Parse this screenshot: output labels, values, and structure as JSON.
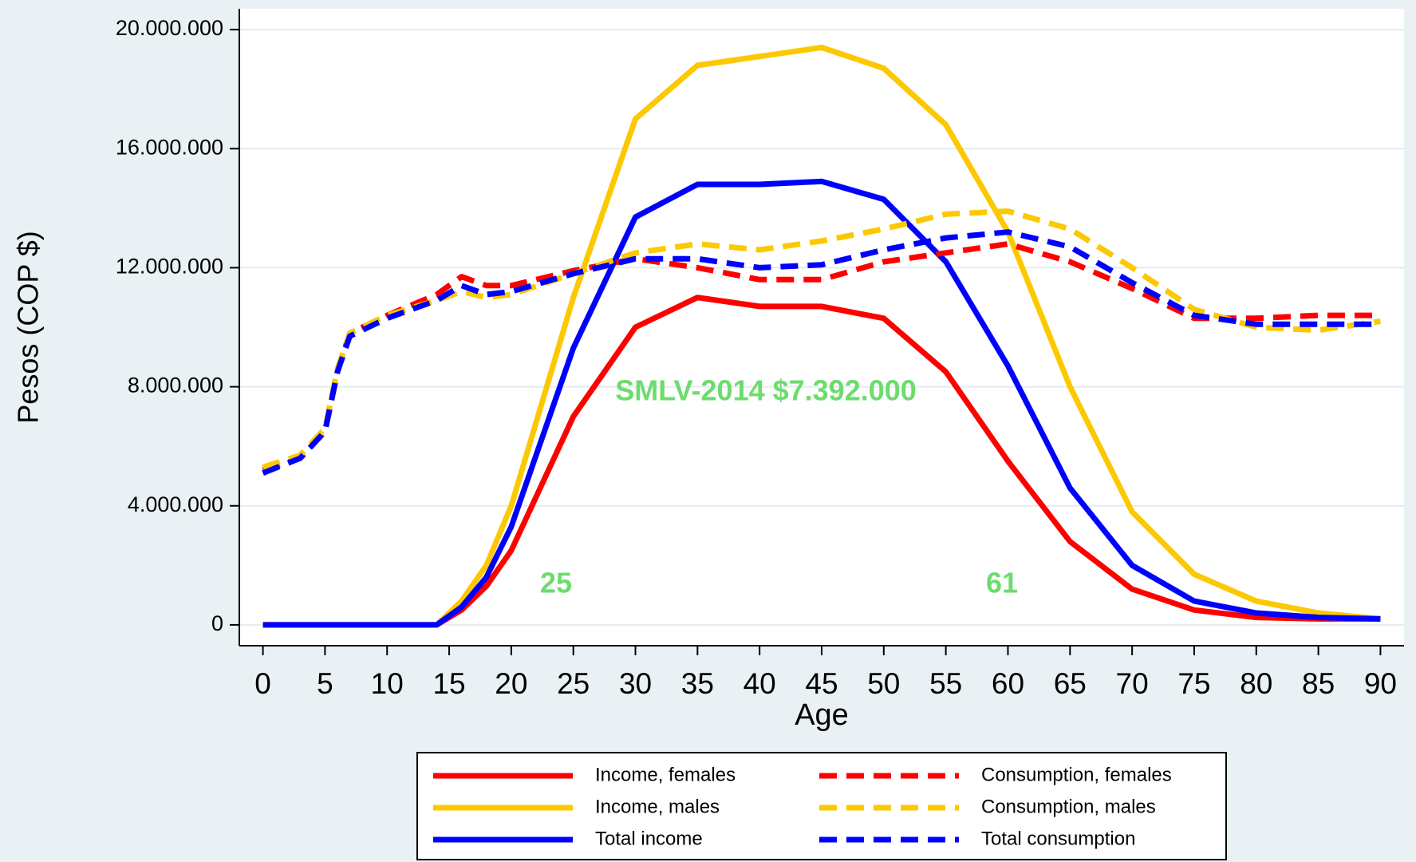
{
  "chart_data": {
    "type": "line",
    "x_label": "Age",
    "y_label": "Pesos (COP $)",
    "annotations": [
      "SMLV-2014 $7.392.000",
      "25",
      "61"
    ],
    "x": [
      0,
      3,
      5,
      6,
      7,
      10,
      14,
      16,
      18,
      20,
      25,
      30,
      35,
      40,
      45,
      50,
      55,
      60,
      65,
      70,
      75,
      80,
      85,
      90
    ],
    "series": [
      {
        "name": "Income, females",
        "color": "#ff0000",
        "style": "solid",
        "values": [
          0,
          0,
          0,
          0,
          0,
          0,
          0,
          500000,
          1300000,
          2500000,
          7000000,
          10000000,
          11000000,
          10700000,
          10700000,
          10300000,
          8500000,
          5500000,
          2800000,
          1200000,
          500000,
          250000,
          200000,
          200000
        ]
      },
      {
        "name": "Income, males",
        "color": "#fcc800",
        "style": "solid",
        "values": [
          0,
          0,
          0,
          0,
          0,
          0,
          0,
          800000,
          2000000,
          4000000,
          11000000,
          17000000,
          18800000,
          19100000,
          19400000,
          18700000,
          16800000,
          13200000,
          8000000,
          3800000,
          1700000,
          800000,
          400000,
          200000
        ]
      },
      {
        "name": "Total income",
        "color": "#0000ff",
        "style": "solid",
        "values": [
          0,
          0,
          0,
          0,
          0,
          0,
          0,
          600000,
          1600000,
          3300000,
          9300000,
          13700000,
          14800000,
          14800000,
          14900000,
          14300000,
          12200000,
          8700000,
          4600000,
          2000000,
          800000,
          400000,
          250000,
          200000
        ]
      },
      {
        "name": "Consumption, females",
        "color": "#ff0000",
        "style": "dashed",
        "values": [
          5200000,
          5600000,
          6500000,
          8500000,
          9800000,
          10400000,
          11100000,
          11700000,
          11400000,
          11400000,
          11900000,
          12300000,
          12000000,
          11600000,
          11600000,
          12200000,
          12500000,
          12800000,
          12200000,
          11300000,
          10300000,
          10300000,
          10400000,
          10400000
        ]
      },
      {
        "name": "Consumption, males",
        "color": "#fcc800",
        "style": "dashed",
        "values": [
          5300000,
          5700000,
          6600000,
          8600000,
          9800000,
          10400000,
          10900000,
          11200000,
          11000000,
          11100000,
          11800000,
          12500000,
          12800000,
          12600000,
          12900000,
          13300000,
          13800000,
          13900000,
          13300000,
          12000000,
          10600000,
          10000000,
          9900000,
          10200000
        ]
      },
      {
        "name": "Total consumption",
        "color": "#0000ff",
        "style": "dashed",
        "values": [
          5100000,
          5600000,
          6500000,
          8500000,
          9700000,
          10300000,
          10900000,
          11400000,
          11100000,
          11200000,
          11800000,
          12300000,
          12300000,
          12000000,
          12100000,
          12600000,
          13000000,
          13200000,
          12700000,
          11500000,
          10400000,
          10100000,
          10100000,
          10100000
        ]
      }
    ],
    "xlim": [
      -1.9,
      91.9
    ],
    "xticks": [
      0,
      5,
      10,
      15,
      20,
      25,
      30,
      35,
      40,
      45,
      50,
      55,
      60,
      65,
      70,
      75,
      80,
      85,
      90
    ],
    "ylim": [
      -700000,
      20700000
    ],
    "yticks": [
      0,
      {
        "value": 4000000,
        "label": "4.000.000"
      },
      {
        "value": 8000000,
        "label": "8.000.000"
      },
      {
        "value": 12000000,
        "label": "12.000.000"
      },
      {
        "value": 16000000,
        "label": "16.000.000"
      },
      {
        "value": 20000000,
        "label": "20.000.000"
      }
    ],
    "grid": true,
    "legend": "bottom"
  }
}
